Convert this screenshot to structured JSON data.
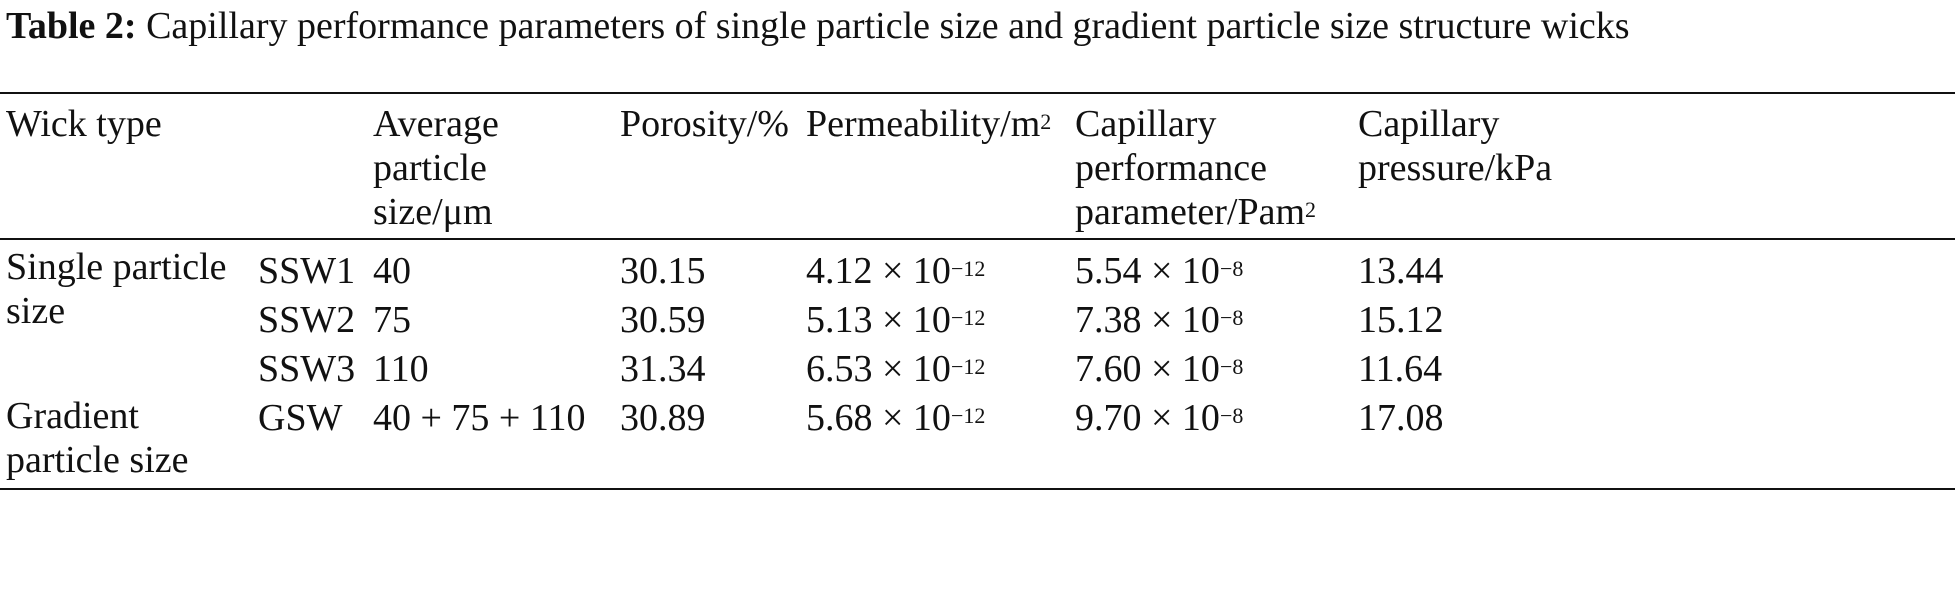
{
  "caption": {
    "label": "Table 2:",
    "text": "Capillary performance parameters of single particle size and gradient particle size structure wicks"
  },
  "headers": {
    "wick_type": "Wick type",
    "avg_size": [
      "Average",
      "particle",
      "size/μm"
    ],
    "porosity": "Porosity/%",
    "permeability": {
      "base": "Permeability/m",
      "sup": "2"
    },
    "cap_perf": [
      "Capillary",
      "performance",
      {
        "base": "parameter/Pam",
        "sup": "2"
      }
    ],
    "cap_pressure": [
      "Capillary",
      "pressure/kPa"
    ]
  },
  "groups": {
    "single": [
      "Single particle",
      "size"
    ],
    "gradient": [
      "Gradient",
      "particle size"
    ]
  },
  "rows": [
    {
      "code": "SSW1",
      "size": "40",
      "porosity": "30.15",
      "perm_base": "4.12 × 10",
      "perm_exp": "−12",
      "cpp_base": "5.54 × 10",
      "cpp_exp": "−8",
      "pressure": "13.44"
    },
    {
      "code": "SSW2",
      "size": "75",
      "porosity": "30.59",
      "perm_base": "5.13 × 10",
      "perm_exp": "−12",
      "cpp_base": "7.38 × 10",
      "cpp_exp": "−8",
      "pressure": "15.12"
    },
    {
      "code": "SSW3",
      "size": "110",
      "porosity": "31.34",
      "perm_base": "6.53 × 10",
      "perm_exp": "−12",
      "cpp_base": "7.60 × 10",
      "cpp_exp": "−8",
      "pressure": "11.64"
    },
    {
      "code": "GSW",
      "size": "40 + 75 + 110",
      "porosity": "30.89",
      "perm_base": "5.68 × 10",
      "perm_exp": "−12",
      "cpp_base": "9.70 × 10",
      "cpp_exp": "−8",
      "pressure": "17.08"
    }
  ]
}
